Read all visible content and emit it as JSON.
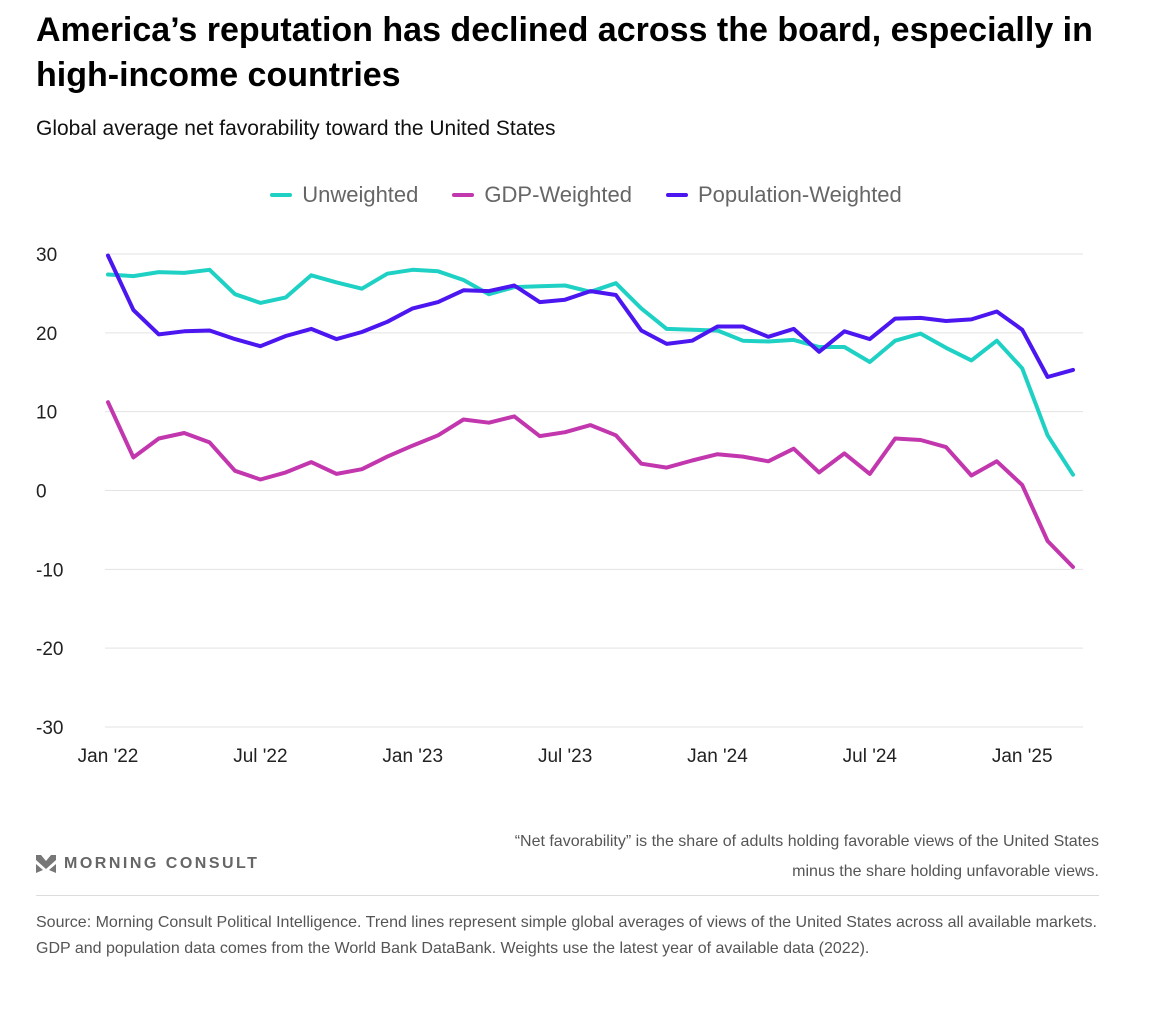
{
  "title": "America’s reputation has declined across the board, especially in high-income countries",
  "subtitle": "Global average net favorability toward the United States",
  "note": "“Net favorability” is the share of adults holding favorable views of the United States minus the share holding unfavorable views.",
  "logo_text": "MORNING CONSULT",
  "source": "Source: Morning Consult Political Intelligence. Trend lines represent simple global averages of views of the United States across all available markets. GDP and population data comes from the World Bank DataBank. Weights use the latest year of available data (2022).",
  "chart_data": {
    "type": "line",
    "title": "Global average net favorability toward the United States",
    "xlabel": "",
    "ylabel": "",
    "ylim": [
      -30,
      30
    ],
    "yticks": [
      30,
      20,
      10,
      0,
      -10,
      -20,
      -30
    ],
    "grid": true,
    "legend_position": "top-center",
    "x_start": "Jan 2022",
    "x_frequency": "monthly",
    "xtick_labels": [
      {
        "index": 0,
        "label": "Jan '22"
      },
      {
        "index": 6,
        "label": "Jul '22"
      },
      {
        "index": 12,
        "label": "Jan '23"
      },
      {
        "index": 18,
        "label": "Jul '23"
      },
      {
        "index": 24,
        "label": "Jan '24"
      },
      {
        "index": 30,
        "label": "Jul '24"
      },
      {
        "index": 36,
        "label": "Jan '25"
      }
    ],
    "series": [
      {
        "name": "Unweighted",
        "color": "#1fd1c4",
        "values": [
          27.4,
          27.2,
          27.7,
          27.6,
          28.0,
          24.9,
          23.8,
          24.5,
          27.3,
          26.4,
          25.6,
          27.5,
          28.0,
          27.8,
          26.7,
          24.9,
          25.8,
          25.9,
          26.0,
          25.2,
          26.3,
          23.1,
          20.5,
          20.4,
          20.3,
          19.0,
          18.9,
          19.1,
          18.2,
          18.2,
          16.3,
          19.0,
          19.9,
          18.1,
          16.5,
          19.0,
          15.5,
          7.0,
          2.0
        ]
      },
      {
        "name": "GDP-Weighted",
        "color": "#c236ae",
        "values": [
          11.2,
          4.2,
          6.6,
          7.3,
          6.1,
          2.5,
          1.4,
          2.3,
          3.6,
          2.1,
          2.7,
          4.3,
          5.7,
          7.0,
          9.0,
          8.6,
          9.4,
          6.9,
          7.4,
          8.3,
          7.0,
          3.4,
          2.9,
          3.8,
          4.6,
          4.3,
          3.7,
          5.3,
          2.3,
          4.7,
          2.1,
          6.6,
          6.4,
          5.5,
          1.9,
          3.7,
          0.7,
          -6.4,
          -9.7
        ]
      },
      {
        "name": "Population-Weighted",
        "color": "#4b16f0",
        "values": [
          29.8,
          22.9,
          19.8,
          20.2,
          20.3,
          19.2,
          18.3,
          19.6,
          20.5,
          19.2,
          20.1,
          21.4,
          23.1,
          23.9,
          25.4,
          25.3,
          26.0,
          23.9,
          24.2,
          25.3,
          24.8,
          20.3,
          18.6,
          19.0,
          20.8,
          20.8,
          19.5,
          20.5,
          17.6,
          20.2,
          19.2,
          21.8,
          21.9,
          21.5,
          21.7,
          22.7,
          20.4,
          14.4,
          15.3
        ]
      }
    ]
  }
}
